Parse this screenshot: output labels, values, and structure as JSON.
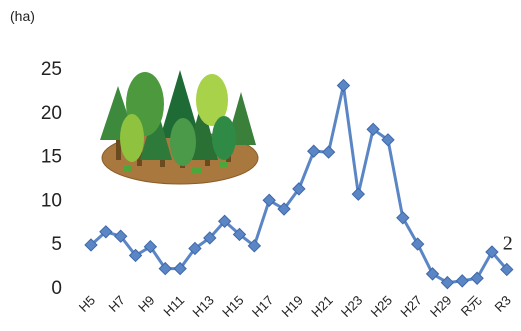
{
  "chart_data": {
    "type": "line",
    "unit_label": "(ha)",
    "x": [
      "H5",
      "H6",
      "H7",
      "H8",
      "H9",
      "H10",
      "H11",
      "H12",
      "H13",
      "H14",
      "H15",
      "H16",
      "H17",
      "H18",
      "H19",
      "H20",
      "H21",
      "H22",
      "H23",
      "H24",
      "H25",
      "H26",
      "H27",
      "H28",
      "H29",
      "H30",
      "R元",
      "R2",
      "R3"
    ],
    "x_tick_labels": [
      "H5",
      "H7",
      "H9",
      "H11",
      "H13",
      "H15",
      "H17",
      "H19",
      "H21",
      "H23",
      "H25",
      "H27",
      "H29",
      "R元",
      "R3"
    ],
    "series": [
      {
        "values": [
          4.8,
          6.3,
          5.8,
          3.6,
          4.6,
          2.1,
          2.1,
          4.4,
          5.6,
          7.5,
          6.0,
          4.7,
          9.9,
          8.9,
          11.2,
          15.5,
          15.4,
          23.0,
          10.6,
          18.0,
          16.8,
          7.9,
          4.9,
          1.5,
          0.5,
          0.7,
          1.0,
          4.0,
          2.0
        ]
      }
    ],
    "y_ticks": [
      "0",
      "5",
      "10",
      "15",
      "20",
      "25"
    ],
    "ylim": [
      0,
      25
    ],
    "grid": false,
    "data_label": {
      "index": 28,
      "text": "2"
    },
    "colors": {
      "line": "#5b86c6",
      "marker": "#5b86c6",
      "marker_edge": "#3f68a8"
    },
    "icons": [
      "forest-illustration"
    ]
  }
}
